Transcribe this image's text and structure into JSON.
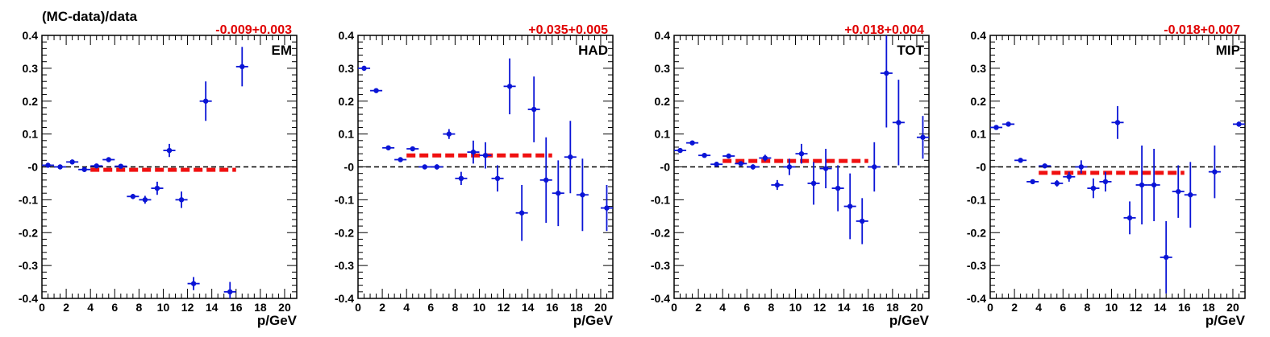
{
  "figure": {
    "ylabel": "(MC-data)/data",
    "xlabel": "p/GeV"
  },
  "colors": {
    "points": "#0a14d6",
    "fit_line": "#f01010",
    "fit_text": "#e00000",
    "zero_line": "#000000"
  },
  "chart_data": [
    {
      "type": "scatter",
      "label": "EM",
      "fit_text": "-0.009+0.003",
      "fit_value": -0.009,
      "fit_range": [
        4,
        16
      ],
      "xlim": [
        0,
        21
      ],
      "ylim": [
        -0.4,
        0.4
      ],
      "xticks": [
        "0",
        "2",
        "4",
        "6",
        "8",
        "10",
        "12",
        "14",
        "16",
        "18",
        "20"
      ],
      "yticks": [
        "0.4",
        "0.3",
        "0.2",
        "0.1",
        "-0",
        "-0.1",
        "-0.2",
        "-0.3",
        "-0.4"
      ],
      "points": [
        {
          "x": 0.5,
          "y": 0.005,
          "err": 0.004
        },
        {
          "x": 1.5,
          "y": 0.0,
          "err": 0.004
        },
        {
          "x": 2.5,
          "y": 0.015,
          "err": 0.005
        },
        {
          "x": 3.5,
          "y": -0.008,
          "err": 0.005
        },
        {
          "x": 4.5,
          "y": 0.003,
          "err": 0.005
        },
        {
          "x": 5.5,
          "y": 0.022,
          "err": 0.006
        },
        {
          "x": 6.5,
          "y": 0.002,
          "err": 0.006
        },
        {
          "x": 7.5,
          "y": -0.09,
          "err": 0.008
        },
        {
          "x": 8.5,
          "y": -0.1,
          "err": 0.012
        },
        {
          "x": 9.5,
          "y": -0.065,
          "err": 0.02
        },
        {
          "x": 10.5,
          "y": 0.05,
          "err": 0.02
        },
        {
          "x": 11.5,
          "y": -0.1,
          "err": 0.025
        },
        {
          "x": 12.5,
          "y": -0.355,
          "err": 0.02
        },
        {
          "x": 13.5,
          "y": 0.2,
          "err": 0.06
        },
        {
          "x": 15.5,
          "y": -0.38,
          "err": 0.03
        },
        {
          "x": 16.5,
          "y": 0.305,
          "err": 0.06
        }
      ]
    },
    {
      "type": "scatter",
      "label": "HAD",
      "fit_text": "+0.035+0.005",
      "fit_value": 0.035,
      "fit_range": [
        4,
        16
      ],
      "xlim": [
        0,
        21
      ],
      "ylim": [
        -0.4,
        0.4
      ],
      "xticks": [
        "0",
        "2",
        "4",
        "6",
        "8",
        "10",
        "12",
        "14",
        "16",
        "18",
        "20"
      ],
      "yticks": [
        "0.4",
        "0.3",
        "0.2",
        "0.1",
        "-0",
        "-0.1",
        "-0.2",
        "-0.3",
        "-0.4"
      ],
      "points": [
        {
          "x": 0.5,
          "y": 0.3,
          "err": 0.005
        },
        {
          "x": 1.5,
          "y": 0.232,
          "err": 0.005
        },
        {
          "x": 2.5,
          "y": 0.058,
          "err": 0.005
        },
        {
          "x": 3.5,
          "y": 0.022,
          "err": 0.006
        },
        {
          "x": 4.5,
          "y": 0.055,
          "err": 0.006
        },
        {
          "x": 5.5,
          "y": 0.0,
          "err": 0.007
        },
        {
          "x": 6.5,
          "y": 0.0,
          "err": 0.008
        },
        {
          "x": 7.5,
          "y": 0.1,
          "err": 0.015
        },
        {
          "x": 8.5,
          "y": -0.035,
          "err": 0.02
        },
        {
          "x": 9.5,
          "y": 0.045,
          "err": 0.035
        },
        {
          "x": 10.5,
          "y": 0.035,
          "err": 0.04
        },
        {
          "x": 11.5,
          "y": -0.035,
          "err": 0.04
        },
        {
          "x": 12.5,
          "y": 0.245,
          "err": 0.085
        },
        {
          "x": 13.5,
          "y": -0.14,
          "err": 0.085
        },
        {
          "x": 14.5,
          "y": 0.175,
          "err": 0.1
        },
        {
          "x": 15.5,
          "y": -0.04,
          "err": 0.13
        },
        {
          "x": 16.5,
          "y": -0.08,
          "err": 0.1
        },
        {
          "x": 17.5,
          "y": 0.03,
          "err": 0.11
        },
        {
          "x": 18.5,
          "y": -0.085,
          "err": 0.11
        },
        {
          "x": 20.5,
          "y": -0.125,
          "err": 0.07
        }
      ]
    },
    {
      "type": "scatter",
      "label": "TOT",
      "fit_text": "+0.018+0.004",
      "fit_value": 0.018,
      "fit_range": [
        4,
        16
      ],
      "xlim": [
        0,
        21
      ],
      "ylim": [
        -0.4,
        0.4
      ],
      "xticks": [
        "0",
        "2",
        "4",
        "6",
        "8",
        "10",
        "12",
        "14",
        "16",
        "18",
        "20"
      ],
      "yticks": [
        "0.4",
        "0.3",
        "0.2",
        "0.1",
        "-0",
        "-0.1",
        "-0.2",
        "-0.3",
        "-0.4"
      ],
      "points": [
        {
          "x": 0.5,
          "y": 0.05,
          "err": 0.004
        },
        {
          "x": 1.5,
          "y": 0.073,
          "err": 0.004
        },
        {
          "x": 2.5,
          "y": 0.035,
          "err": 0.005
        },
        {
          "x": 3.5,
          "y": 0.008,
          "err": 0.005
        },
        {
          "x": 4.5,
          "y": 0.033,
          "err": 0.006
        },
        {
          "x": 5.5,
          "y": 0.01,
          "err": 0.006
        },
        {
          "x": 6.5,
          "y": 0.0,
          "err": 0.008
        },
        {
          "x": 7.5,
          "y": 0.027,
          "err": 0.01
        },
        {
          "x": 8.5,
          "y": -0.055,
          "err": 0.015
        },
        {
          "x": 9.5,
          "y": 0.0,
          "err": 0.025
        },
        {
          "x": 10.5,
          "y": 0.04,
          "err": 0.03
        },
        {
          "x": 11.5,
          "y": -0.05,
          "err": 0.065
        },
        {
          "x": 12.5,
          "y": -0.005,
          "err": 0.06
        },
        {
          "x": 13.5,
          "y": -0.065,
          "err": 0.07
        },
        {
          "x": 14.5,
          "y": -0.12,
          "err": 0.1
        },
        {
          "x": 15.5,
          "y": -0.165,
          "err": 0.07
        },
        {
          "x": 16.5,
          "y": 0.0,
          "err": 0.075
        },
        {
          "x": 17.5,
          "y": 0.285,
          "err": 0.165
        },
        {
          "x": 18.5,
          "y": 0.135,
          "err": 0.13
        },
        {
          "x": 20.5,
          "y": 0.09,
          "err": 0.065
        }
      ]
    },
    {
      "type": "scatter",
      "label": "MIP",
      "fit_text": "-0.018+0.007",
      "fit_value": -0.018,
      "fit_range": [
        4,
        16
      ],
      "xlim": [
        0,
        21
      ],
      "ylim": [
        -0.4,
        0.4
      ],
      "xticks": [
        "0",
        "2",
        "4",
        "6",
        "8",
        "10",
        "12",
        "14",
        "16",
        "18",
        "20"
      ],
      "yticks": [
        "0.4",
        "0.3",
        "0.2",
        "0.1",
        "-0",
        "-0.1",
        "-0.2",
        "-0.3",
        "-0.4"
      ],
      "points": [
        {
          "x": 0.5,
          "y": 0.12,
          "err": 0.005
        },
        {
          "x": 1.5,
          "y": 0.13,
          "err": 0.005
        },
        {
          "x": 2.5,
          "y": 0.02,
          "err": 0.005
        },
        {
          "x": 3.5,
          "y": -0.045,
          "err": 0.006
        },
        {
          "x": 4.5,
          "y": 0.003,
          "err": 0.007
        },
        {
          "x": 5.5,
          "y": -0.05,
          "err": 0.01
        },
        {
          "x": 6.5,
          "y": -0.03,
          "err": 0.015
        },
        {
          "x": 7.5,
          "y": 0.0,
          "err": 0.02
        },
        {
          "x": 8.5,
          "y": -0.065,
          "err": 0.03
        },
        {
          "x": 9.5,
          "y": -0.045,
          "err": 0.03
        },
        {
          "x": 10.5,
          "y": 0.135,
          "err": 0.05
        },
        {
          "x": 11.5,
          "y": -0.155,
          "err": 0.05
        },
        {
          "x": 12.5,
          "y": -0.055,
          "err": 0.12
        },
        {
          "x": 13.5,
          "y": -0.055,
          "err": 0.11
        },
        {
          "x": 14.5,
          "y": -0.275,
          "err": 0.11
        },
        {
          "x": 15.5,
          "y": -0.075,
          "err": 0.08
        },
        {
          "x": 16.5,
          "y": -0.085,
          "err": 0.1
        },
        {
          "x": 18.5,
          "y": -0.015,
          "err": 0.08
        },
        {
          "x": 20.5,
          "y": 0.13,
          "err": 0.008
        }
      ]
    }
  ]
}
